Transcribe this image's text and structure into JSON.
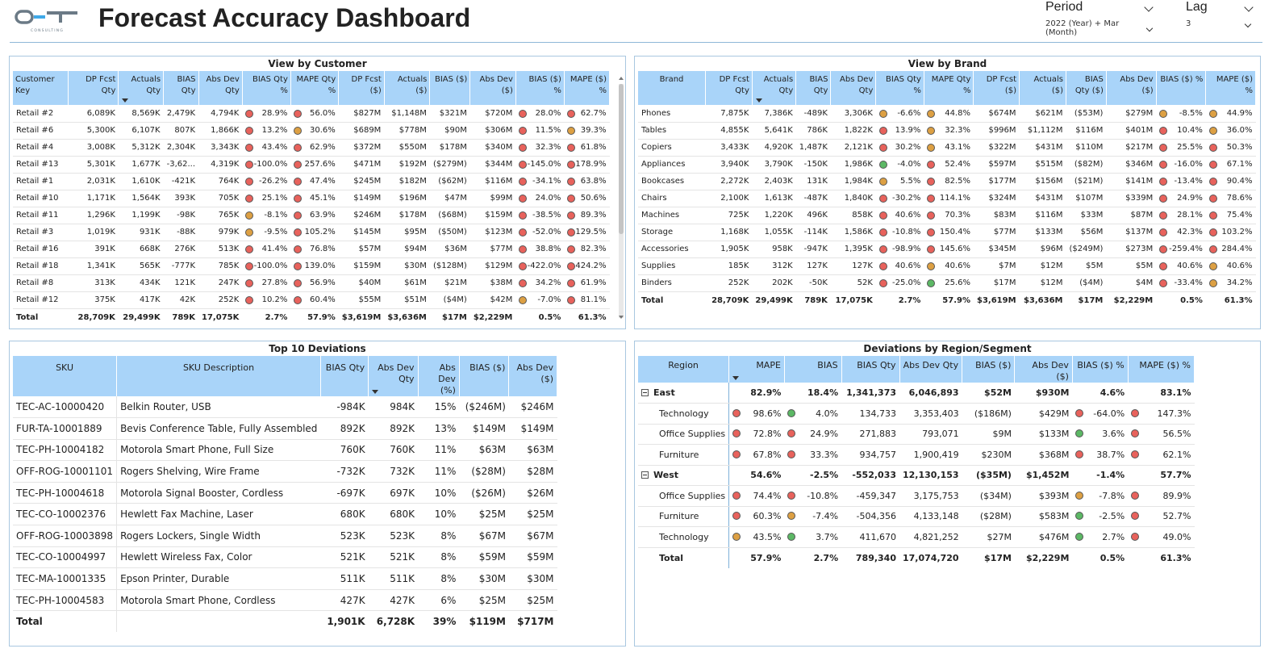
{
  "header": {
    "title": "Forecast Accuracy Dashboard",
    "logo_text": "O-T",
    "logo_subtext": "CONSULTING"
  },
  "slicers": {
    "period": {
      "label": "Period",
      "value": "2022 (Year) + Mar (Month)"
    },
    "lag": {
      "label": "Lag",
      "value": "3"
    }
  },
  "status_colors": {
    "red": "#e8625c",
    "orange": "#dda043",
    "green": "#5cb865"
  },
  "customer": {
    "title": "View by Customer",
    "columns": [
      "Customer Key",
      "DP Fcst Qty",
      "Actuals Qty",
      "BIAS Qty",
      "Abs Dev Qty",
      "BIAS Qty %",
      "MAPE Qty %",
      "DP Fcst ($)",
      "Actuals ($)",
      "BIAS ($)",
      "Abs Dev ($)",
      "BIAS ($) %",
      "MAPE ($) %"
    ],
    "rows": [
      [
        "Retail #2",
        "6,089K",
        "8,569K",
        "2,479K",
        "4,794K",
        "28.9%",
        "56.0%",
        "$827M",
        "$1,148M",
        "$321M",
        "$720M",
        "28.0%",
        "62.7%"
      ],
      [
        "Retail #6",
        "5,300K",
        "6,107K",
        "807K",
        "1,866K",
        "13.2%",
        "30.6%",
        "$689M",
        "$778M",
        "$90M",
        "$306M",
        "11.5%",
        "39.3%"
      ],
      [
        "Retail #4",
        "3,008K",
        "5,312K",
        "2,304K",
        "3,343K",
        "43.4%",
        "62.9%",
        "$372M",
        "$550M",
        "$178M",
        "$340M",
        "32.3%",
        "61.8%"
      ],
      [
        "Retail #13",
        "5,301K",
        "1,677K",
        "-3,62...",
        "4,319K",
        "-100.0%",
        "257.6%",
        "$471M",
        "$192M",
        "($279M)",
        "$344M",
        "-145.0%",
        "178.9%"
      ],
      [
        "Retail #1",
        "2,031K",
        "1,610K",
        "-421K",
        "764K",
        "-26.2%",
        "47.4%",
        "$245M",
        "$182M",
        "($62M)",
        "$116M",
        "-34.1%",
        "63.8%"
      ],
      [
        "Retail #10",
        "1,171K",
        "1,564K",
        "393K",
        "705K",
        "25.1%",
        "45.1%",
        "$149M",
        "$196M",
        "$47M",
        "$99M",
        "24.0%",
        "50.6%"
      ],
      [
        "Retail #11",
        "1,296K",
        "1,199K",
        "-98K",
        "765K",
        "-8.1%",
        "63.9%",
        "$246M",
        "$178M",
        "($68M)",
        "$159M",
        "-38.5%",
        "89.3%"
      ],
      [
        "Retail #3",
        "1,019K",
        "931K",
        "-88K",
        "979K",
        "-9.5%",
        "105.2%",
        "$145M",
        "$95M",
        "($50M)",
        "$123M",
        "-52.0%",
        "129.5%"
      ],
      [
        "Retail #16",
        "391K",
        "668K",
        "276K",
        "513K",
        "41.4%",
        "76.8%",
        "$57M",
        "$94M",
        "$36M",
        "$77M",
        "38.8%",
        "82.3%"
      ],
      [
        "Retail #18",
        "1,341K",
        "565K",
        "-777K",
        "785K",
        "-100.0%",
        "139.0%",
        "$159M",
        "$30M",
        "($128M)",
        "$129M",
        "-422.0%",
        "424.2%"
      ],
      [
        "Retail #8",
        "313K",
        "434K",
        "121K",
        "247K",
        "27.8%",
        "56.9%",
        "$40M",
        "$61M",
        "$21M",
        "$38M",
        "34.2%",
        "61.9%"
      ],
      [
        "Retail #12",
        "375K",
        "417K",
        "42K",
        "252K",
        "10.2%",
        "60.4%",
        "$55M",
        "$51M",
        "($4M)",
        "$42M",
        "-7.0%",
        "81.1%"
      ]
    ],
    "dots": [
      [
        "red",
        "red",
        "red",
        "red"
      ],
      [
        "red",
        "orange",
        "red",
        "orange"
      ],
      [
        "red",
        "red",
        "red",
        "red"
      ],
      [
        "red",
        "red",
        "red",
        "red"
      ],
      [
        "red",
        "red",
        "red",
        "red"
      ],
      [
        "red",
        "red",
        "red",
        "red"
      ],
      [
        "orange",
        "red",
        "red",
        "red"
      ],
      [
        "orange",
        "red",
        "red",
        "red"
      ],
      [
        "red",
        "red",
        "red",
        "red"
      ],
      [
        "red",
        "red",
        "red",
        "red"
      ],
      [
        "red",
        "red",
        "red",
        "red"
      ],
      [
        "red",
        "red",
        "orange",
        "red"
      ]
    ],
    "total": [
      "Total",
      "28,709K",
      "29,499K",
      "789K",
      "17,075K",
      "2.7%",
      "57.9%",
      "$3,619M",
      "$3,636M",
      "$17M",
      "$2,229M",
      "0.5%",
      "61.3%"
    ]
  },
  "brand": {
    "title": "View by Brand",
    "columns": [
      "Brand",
      "DP Fcst Qty",
      "Actuals Qty",
      "BIAS Qty",
      "Abs Dev Qty",
      "BIAS Qty %",
      "MAPE Qty %",
      "DP Fcst ($)",
      "Actuals ($)",
      "BIAS Qty ($)",
      "Abs Dev ($)",
      "BIAS ($) %",
      "MAPE ($) %"
    ],
    "rows": [
      [
        "Phones",
        "7,875K",
        "7,386K",
        "-489K",
        "3,306K",
        "-6.6%",
        "44.8%",
        "$674M",
        "$621M",
        "($53M)",
        "$279M",
        "-8.5%",
        "44.9%"
      ],
      [
        "Tables",
        "4,855K",
        "5,641K",
        "786K",
        "1,822K",
        "13.9%",
        "32.3%",
        "$996M",
        "$1,112M",
        "$116M",
        "$401M",
        "10.4%",
        "36.0%"
      ],
      [
        "Copiers",
        "3,433K",
        "4,920K",
        "1,487K",
        "2,121K",
        "30.2%",
        "43.1%",
        "$322M",
        "$431M",
        "$110M",
        "$217M",
        "25.5%",
        "50.3%"
      ],
      [
        "Appliances",
        "3,940K",
        "3,790K",
        "-150K",
        "1,986K",
        "-4.0%",
        "52.4%",
        "$597M",
        "$515M",
        "($82M)",
        "$346M",
        "-16.0%",
        "67.1%"
      ],
      [
        "Bookcases",
        "2,272K",
        "2,403K",
        "131K",
        "1,984K",
        "5.5%",
        "82.5%",
        "$177M",
        "$156M",
        "($21M)",
        "$141M",
        "-13.4%",
        "90.4%"
      ],
      [
        "Chairs",
        "2,100K",
        "1,613K",
        "-487K",
        "1,840K",
        "-30.2%",
        "114.1%",
        "$324M",
        "$431M",
        "$107M",
        "$339M",
        "24.9%",
        "78.6%"
      ],
      [
        "Machines",
        "725K",
        "1,220K",
        "496K",
        "858K",
        "40.6%",
        "70.3%",
        "$83M",
        "$116M",
        "$33M",
        "$87M",
        "28.1%",
        "75.4%"
      ],
      [
        "Storage",
        "1,168K",
        "1,055K",
        "-114K",
        "1,586K",
        "-10.8%",
        "150.4%",
        "$77M",
        "$133M",
        "$56M",
        "$137M",
        "42.3%",
        "103.2%"
      ],
      [
        "Accessories",
        "1,905K",
        "958K",
        "-947K",
        "1,395K",
        "-98.9%",
        "145.6%",
        "$345M",
        "$96M",
        "($249M)",
        "$273M",
        "-259.4%",
        "284.4%"
      ],
      [
        "Supplies",
        "185K",
        "312K",
        "127K",
        "127K",
        "40.6%",
        "40.6%",
        "$7M",
        "$12M",
        "$5M",
        "$5M",
        "40.6%",
        "40.6%"
      ],
      [
        "Binders",
        "252K",
        "202K",
        "-50K",
        "52K",
        "-25.0%",
        "25.6%",
        "$17M",
        "$12M",
        "($4M)",
        "$4M",
        "-33.4%",
        "34.2%"
      ]
    ],
    "dots": [
      [
        "orange",
        "orange",
        "orange",
        "orange"
      ],
      [
        "red",
        "orange",
        "red",
        "orange"
      ],
      [
        "red",
        "orange",
        "red",
        "red"
      ],
      [
        "green",
        "red",
        "red",
        "red"
      ],
      [
        "orange",
        "red",
        "red",
        "red"
      ],
      [
        "red",
        "red",
        "red",
        "red"
      ],
      [
        "red",
        "red",
        "red",
        "red"
      ],
      [
        "red",
        "red",
        "red",
        "red"
      ],
      [
        "red",
        "red",
        "red",
        "red"
      ],
      [
        "red",
        "orange",
        "red",
        "orange"
      ],
      [
        "red",
        "green",
        "red",
        "orange"
      ]
    ],
    "total": [
      "Total",
      "28,709K",
      "29,499K",
      "789K",
      "17,075K",
      "2.7%",
      "57.9%",
      "$3,619M",
      "$3,636M",
      "$17M",
      "$2,229M",
      "0.5%",
      "61.3%"
    ]
  },
  "sku": {
    "title": "Top 10 Deviations",
    "columns": [
      "SKU",
      "SKU Description",
      "BIAS Qty",
      "Abs Dev Qty",
      "Abs Dev (%)",
      "BIAS ($)",
      "Abs Dev ($)"
    ],
    "rows": [
      [
        "TEC-AC-10000420",
        "Belkin Router, USB",
        "-984K",
        "984K",
        "15%",
        "($246M)",
        "$246M"
      ],
      [
        "FUR-TA-10001889",
        "Bevis Conference Table, Fully Assembled",
        "892K",
        "892K",
        "13%",
        "$149M",
        "$149M"
      ],
      [
        "TEC-PH-10004182",
        "Motorola Smart Phone, Full Size",
        "760K",
        "760K",
        "11%",
        "$63M",
        "$63M"
      ],
      [
        "OFF-ROG-10001101",
        "Rogers Shelving, Wire Frame",
        "-732K",
        "732K",
        "11%",
        "($28M)",
        "$28M"
      ],
      [
        "TEC-PH-10004618",
        "Motorola Signal Booster, Cordless",
        "-697K",
        "697K",
        "10%",
        "($26M)",
        "$26M"
      ],
      [
        "TEC-CO-10002376",
        "Hewlett Fax Machine, Laser",
        "680K",
        "680K",
        "10%",
        "$25M",
        "$25M"
      ],
      [
        "OFF-ROG-10003898",
        "Rogers Lockers, Single Width",
        "523K",
        "523K",
        "8%",
        "$67M",
        "$67M"
      ],
      [
        "TEC-CO-10004997",
        "Hewlett Wireless Fax, Color",
        "521K",
        "521K",
        "8%",
        "$59M",
        "$59M"
      ],
      [
        "TEC-MA-10001335",
        "Epson Printer, Durable",
        "511K",
        "511K",
        "8%",
        "$30M",
        "$30M"
      ],
      [
        "TEC-PH-10004583",
        "Motorola Smart Phone, Cordless",
        "427K",
        "427K",
        "6%",
        "$25M",
        "$25M"
      ]
    ],
    "total": [
      "Total",
      "",
      "1,901K",
      "6,728K",
      "39%",
      "$119M",
      "$717M"
    ]
  },
  "region": {
    "title": "Deviations by Region/Segment",
    "columns": [
      "Region",
      "MAPE",
      "BIAS",
      "BIAS Qty",
      "Abs Dev Qty",
      "BIAS ($)",
      "Abs Dev ($)",
      "BIAS ($) %",
      "MAPE ($) %"
    ],
    "groups": [
      {
        "name": "East",
        "values": [
          "82.9%",
          "18.4%",
          "1,341,373",
          "6,046,893",
          "$52M",
          "$930M",
          "4.6%",
          "83.1%"
        ],
        "rows": [
          {
            "name": "Technology",
            "values": [
              "98.6%",
              "4.0%",
              "134,733",
              "3,353,403",
              "($186M)",
              "$429M",
              "-64.0%",
              "147.3%"
            ],
            "dots": [
              "red",
              "green",
              "red",
              "red"
            ]
          },
          {
            "name": "Office Supplies",
            "values": [
              "72.8%",
              "24.9%",
              "271,883",
              "793,071",
              "$9M",
              "$133M",
              "3.6%",
              "56.5%"
            ],
            "dots": [
              "red",
              "red",
              "green",
              "red"
            ]
          },
          {
            "name": "Furniture",
            "values": [
              "67.8%",
              "33.3%",
              "934,757",
              "1,900,419",
              "$230M",
              "$368M",
              "38.7%",
              "62.1%"
            ],
            "dots": [
              "red",
              "red",
              "red",
              "red"
            ]
          }
        ]
      },
      {
        "name": "West",
        "values": [
          "54.6%",
          "-2.5%",
          "-552,033",
          "12,130,153",
          "($35M)",
          "$1,452M",
          "-1.4%",
          "57.7%"
        ],
        "rows": [
          {
            "name": "Office Supplies",
            "values": [
              "74.4%",
              "-10.8%",
              "-459,347",
              "3,175,753",
              "($34M)",
              "$393M",
              "-7.8%",
              "89.9%"
            ],
            "dots": [
              "red",
              "red",
              "orange",
              "red"
            ]
          },
          {
            "name": "Furniture",
            "values": [
              "60.3%",
              "-7.4%",
              "-504,356",
              "4,133,148",
              "($28M)",
              "$583M",
              "-2.5%",
              "52.7%"
            ],
            "dots": [
              "red",
              "orange",
              "green",
              "red"
            ]
          },
          {
            "name": "Technology",
            "values": [
              "43.5%",
              "3.7%",
              "411,670",
              "4,821,252",
              "$27M",
              "$476M",
              "2.7%",
              "49.0%"
            ],
            "dots": [
              "orange",
              "green",
              "green",
              "red"
            ]
          }
        ]
      }
    ],
    "total": [
      "Total",
      "57.9%",
      "2.7%",
      "789,340",
      "17,074,720",
      "$17M",
      "$2,229M",
      "0.5%",
      "61.3%"
    ]
  }
}
